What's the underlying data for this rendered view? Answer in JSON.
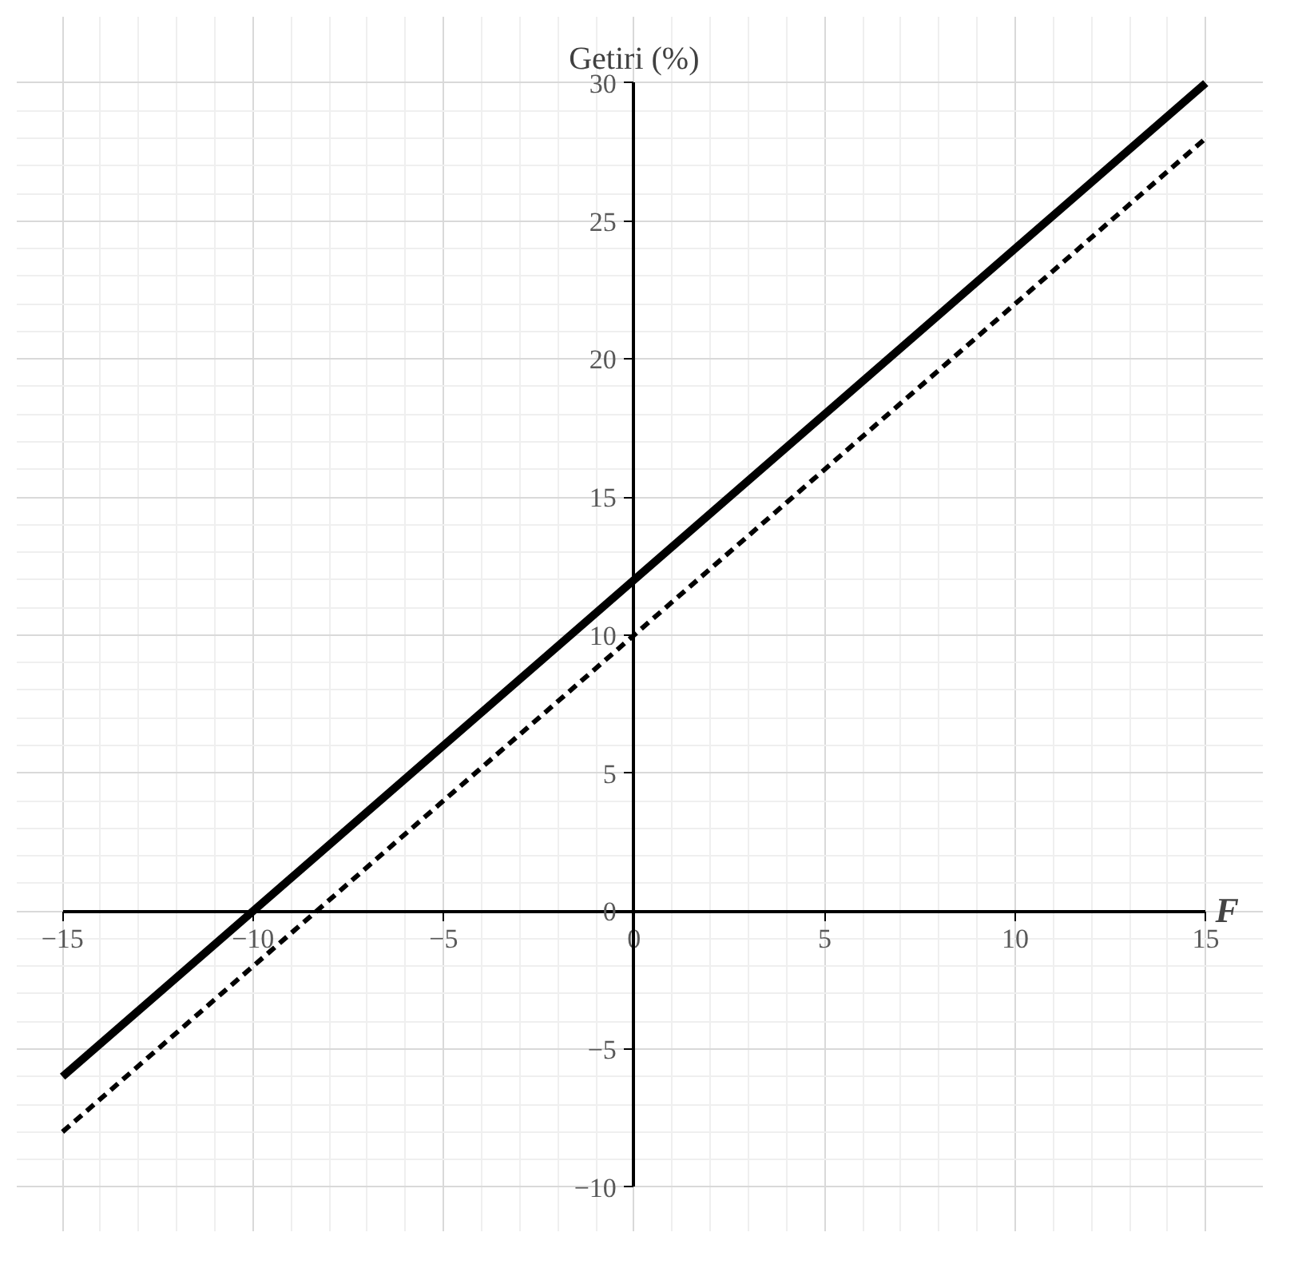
{
  "chart_data": {
    "type": "line",
    "xlabel": "F",
    "ylabel": "Getiri (%)",
    "x": [
      -15,
      15
    ],
    "series": [
      {
        "color": "#000000",
        "values": [
          -6,
          30
        ],
        "line_style": "solid"
      },
      {
        "color": "#000000",
        "values": [
          -8,
          28
        ],
        "line_style": "dashed"
      }
    ],
    "xlim": [
      -15,
      15
    ],
    "ylim": [
      -10,
      30
    ],
    "xticks": [
      -15,
      -10,
      -5,
      0,
      5,
      10,
      15
    ],
    "yticks": [
      -10,
      -5,
      0,
      5,
      10,
      15,
      20,
      25,
      30
    ],
    "grid": true,
    "marker": "none"
  }
}
